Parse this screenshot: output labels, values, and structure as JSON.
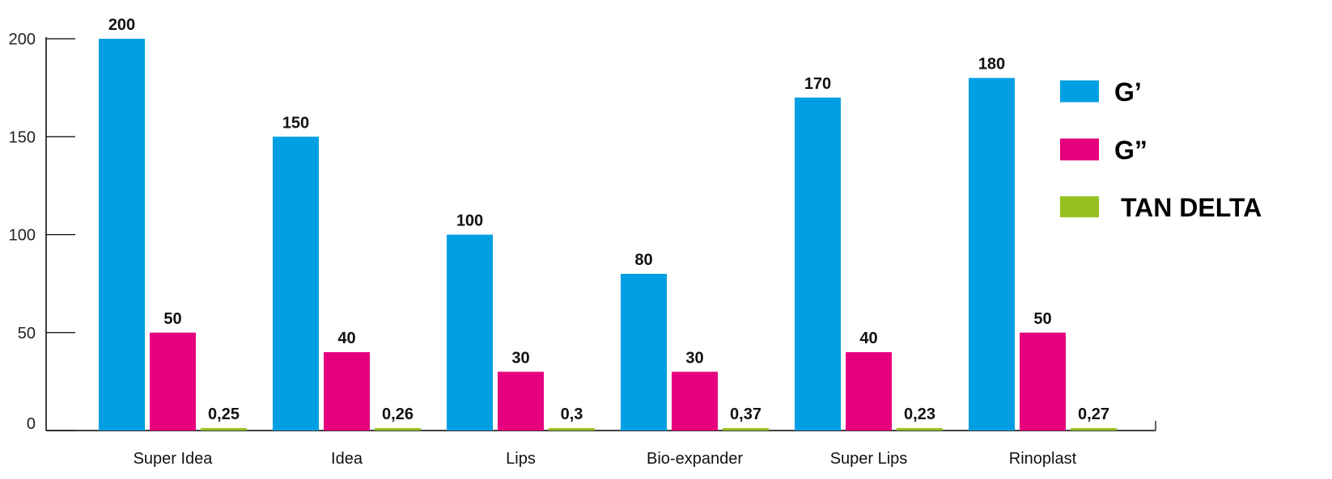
{
  "chart_data": {
    "type": "bar",
    "categories": [
      "Super Idea",
      "Idea",
      "Lips",
      "Bio-expander",
      "Super Lips",
      "Rinoplast"
    ],
    "series": [
      {
        "name": "G’",
        "color": "#009FE3",
        "values": [
          200,
          150,
          100,
          80,
          170,
          180
        ],
        "labels": [
          "200",
          "150",
          "100",
          "80",
          "170",
          "180"
        ]
      },
      {
        "name": "G”",
        "color": "#E6007E",
        "values": [
          50,
          40,
          30,
          30,
          40,
          50
        ],
        "labels": [
          "50",
          "40",
          "30",
          "30",
          "40",
          "50"
        ]
      },
      {
        "name": "TAN DELTA",
        "color": "#95C11F",
        "values": [
          0.25,
          0.26,
          0.3,
          0.37,
          0.23,
          0.27
        ],
        "labels": [
          "0,25",
          "0,26",
          "0,3",
          "0,37",
          "0,23",
          "0,27"
        ]
      }
    ],
    "yticks": [
      0,
      50,
      100,
      150,
      200
    ],
    "ylim": [
      0,
      200
    ],
    "grid": false,
    "legend": "right"
  }
}
